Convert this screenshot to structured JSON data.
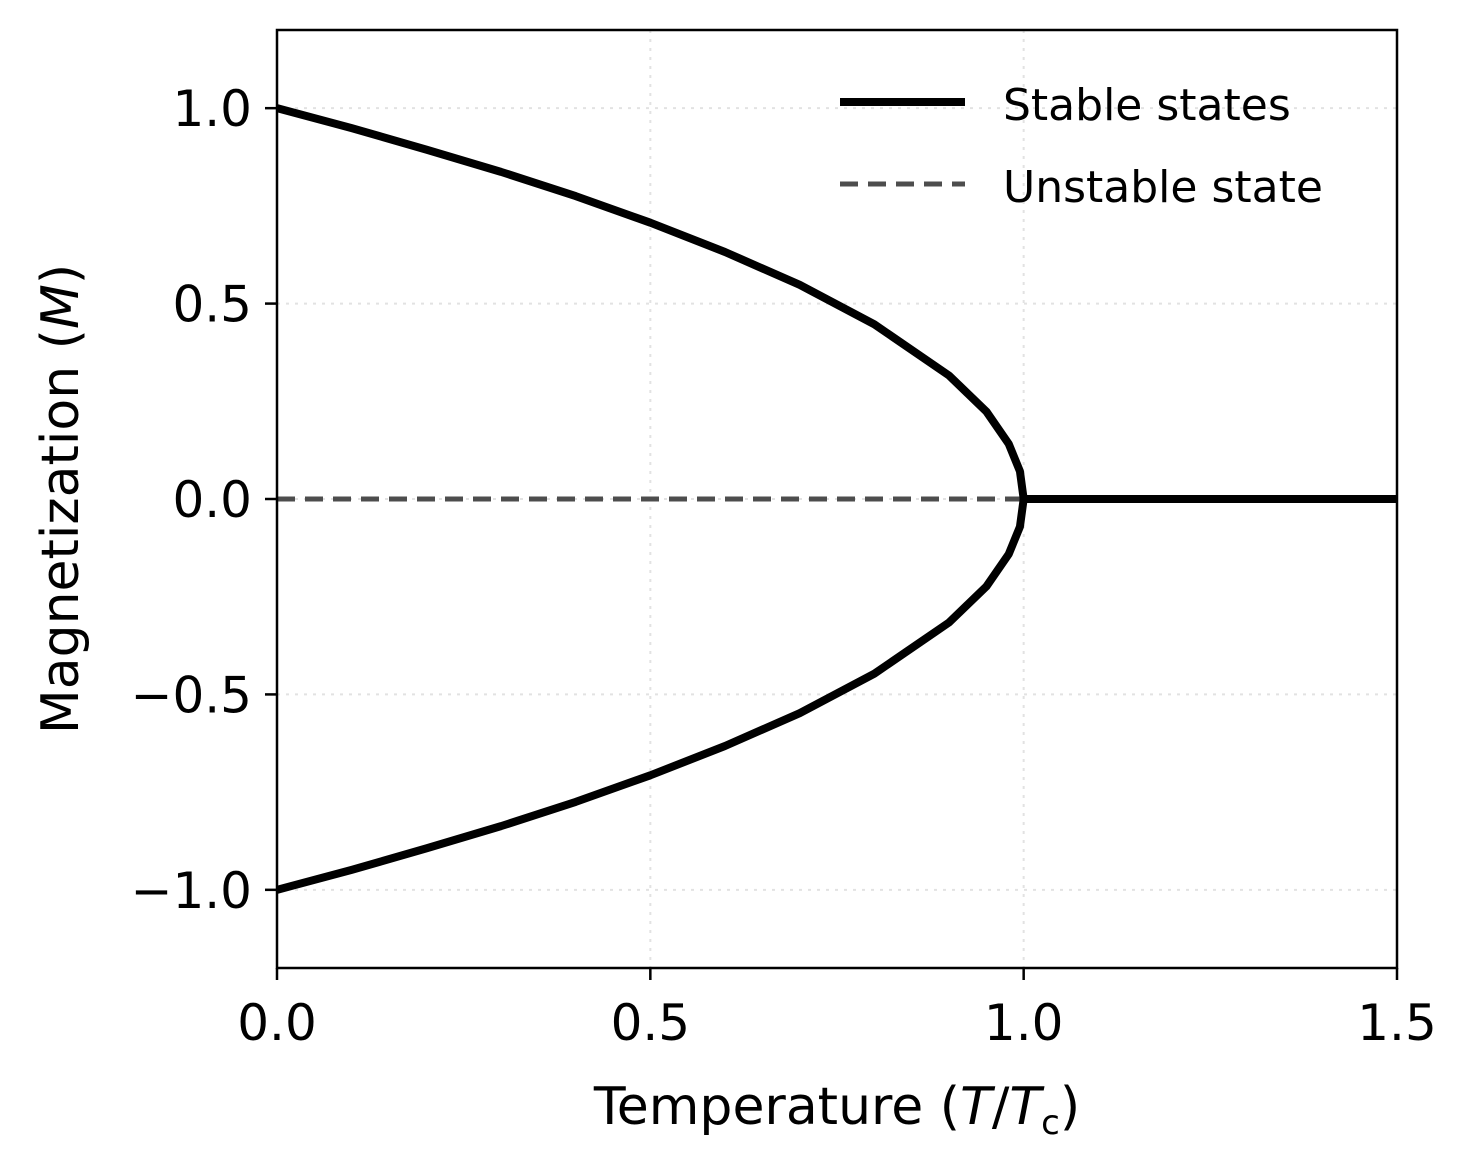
{
  "chart_data": {
    "type": "line",
    "xlabel": "Temperature (T/T_c)",
    "xlabel_parts": {
      "prefix": "Temperature (",
      "t": "T",
      "slash": "/",
      "tc": "T",
      "sub": "c",
      "suffix": ")"
    },
    "ylabel": "Magnetization (M)",
    "ylabel_parts": {
      "prefix": "Magnetization (",
      "m": "M",
      "suffix": ")"
    },
    "xlim": [
      0.0,
      1.5
    ],
    "ylim": [
      -1.2,
      1.2
    ],
    "xticks": [
      0.0,
      0.5,
      1.0,
      1.5
    ],
    "xtick_labels": [
      "0.0",
      "0.5",
      "1.0",
      "1.5"
    ],
    "yticks": [
      1.0,
      0.5,
      0.0,
      -0.5,
      -1.0
    ],
    "ytick_labels": [
      "1.0",
      "0.5",
      "0.0",
      "−0.5",
      "−1.0"
    ],
    "grid": true,
    "legend_position": "top-right",
    "series": [
      {
        "name": "Stable states",
        "style": "solid",
        "color": "#000000",
        "segments": [
          {
            "x": [
              0.0,
              0.1,
              0.2,
              0.3,
              0.4,
              0.5,
              0.6,
              0.7,
              0.8,
              0.9,
              0.95,
              0.98,
              0.995,
              1.0
            ],
            "y": [
              1.0,
              0.949,
              0.894,
              0.837,
              0.775,
              0.707,
              0.632,
              0.548,
              0.447,
              0.316,
              0.224,
              0.141,
              0.071,
              0.0
            ]
          },
          {
            "x": [
              0.0,
              0.1,
              0.2,
              0.3,
              0.4,
              0.5,
              0.6,
              0.7,
              0.8,
              0.9,
              0.95,
              0.98,
              0.995,
              1.0
            ],
            "y": [
              -1.0,
              -0.949,
              -0.894,
              -0.837,
              -0.775,
              -0.707,
              -0.632,
              -0.548,
              -0.447,
              -0.316,
              -0.224,
              -0.141,
              -0.071,
              0.0
            ]
          },
          {
            "x": [
              1.0,
              1.5
            ],
            "y": [
              0.0,
              0.0
            ]
          }
        ]
      },
      {
        "name": "Unstable state",
        "style": "dashed",
        "color": "#4d4d4d",
        "segments": [
          {
            "x": [
              0.0,
              1.0
            ],
            "y": [
              0.0,
              0.0
            ]
          }
        ]
      }
    ]
  }
}
